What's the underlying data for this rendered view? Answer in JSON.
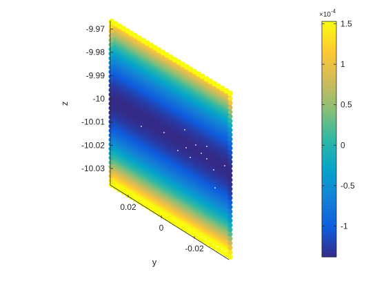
{
  "chart_data": {
    "type": "scatter",
    "plot_style": "3d-scatter-colored",
    "colormap": "parula",
    "z_axis": {
      "label": "z",
      "range": [
        -10.035,
        -9.97
      ],
      "tick_values": [
        -9.97,
        -9.98,
        -9.99,
        -10,
        -10.01,
        -10.02,
        -10.03
      ],
      "tick_labels": [
        "-9.97",
        "-9.98",
        "-9.99",
        "-10",
        "-10.01",
        "-10.02",
        "-10.03"
      ]
    },
    "y_axis": {
      "label": "y",
      "range": [
        0.03,
        -0.03
      ],
      "tick_values": [
        0.02,
        0,
        -0.02
      ],
      "tick_labels": [
        "0.02",
        "0",
        "-0.02"
      ]
    },
    "colorbar": {
      "range": [
        -0.000138,
        0.000153
      ],
      "exponent_label": "×10",
      "exponent_power": "-4",
      "tick_values": [
        1.5,
        1,
        0.5,
        0,
        -0.5,
        -1
      ],
      "tick_labels": [
        "1.5",
        "1",
        "0.5",
        "0",
        "-0.5",
        "-1"
      ],
      "colors": [
        "#352a87",
        "#0f5cdd",
        "#1481d6",
        "#06a4ca",
        "#2eb7a4",
        "#87bf77",
        "#d1bb59",
        "#fec832",
        "#f9fb0e"
      ]
    },
    "grid": false,
    "legend": "none"
  }
}
